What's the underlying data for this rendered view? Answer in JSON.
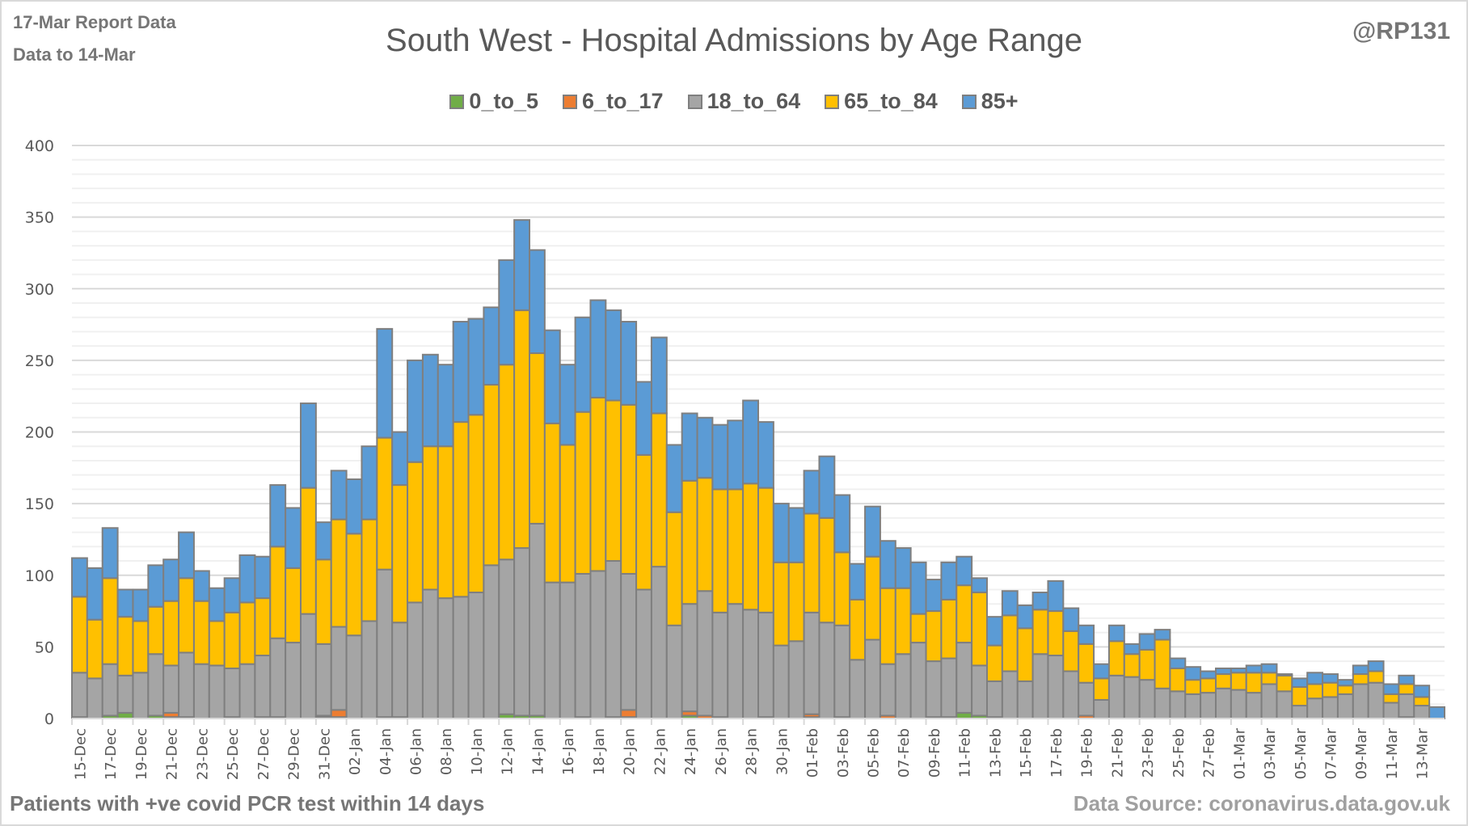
{
  "header": {
    "report_date": "17-Mar Report Data",
    "data_to": "Data to 14-Mar",
    "handle": "@RP131"
  },
  "footer": {
    "note": "Patients with  +ve covid PCR test within 14 days",
    "source": "Data Source: coronavirus.data.gov.uk"
  },
  "chart_data": {
    "type": "bar",
    "stacked": true,
    "title": "South West - Hospital Admissions by Age Range",
    "xlabel": "",
    "ylabel": "",
    "ylim": [
      0,
      400
    ],
    "yticks": [
      0,
      50,
      100,
      150,
      200,
      250,
      300,
      350,
      400
    ],
    "grid": true,
    "legend_position": "top",
    "categories": [
      "15-Dec",
      "16-Dec",
      "17-Dec",
      "18-Dec",
      "19-Dec",
      "20-Dec",
      "21-Dec",
      "22-Dec",
      "23-Dec",
      "24-Dec",
      "25-Dec",
      "26-Dec",
      "27-Dec",
      "28-Dec",
      "29-Dec",
      "30-Dec",
      "31-Dec",
      "01-Jan",
      "02-Jan",
      "03-Jan",
      "04-Jan",
      "05-Jan",
      "06-Jan",
      "07-Jan",
      "08-Jan",
      "09-Jan",
      "10-Jan",
      "11-Jan",
      "12-Jan",
      "13-Jan",
      "14-Jan",
      "15-Jan",
      "16-Jan",
      "17-Jan",
      "18-Jan",
      "19-Jan",
      "20-Jan",
      "21-Jan",
      "22-Jan",
      "23-Jan",
      "24-Jan",
      "25-Jan",
      "26-Jan",
      "27-Jan",
      "28-Jan",
      "29-Jan",
      "30-Jan",
      "31-Jan",
      "01-Feb",
      "02-Feb",
      "03-Feb",
      "04-Feb",
      "05-Feb",
      "06-Feb",
      "07-Feb",
      "08-Feb",
      "09-Feb",
      "10-Feb",
      "11-Feb",
      "12-Feb",
      "13-Feb",
      "14-Feb",
      "15-Feb",
      "16-Feb",
      "17-Feb",
      "18-Feb",
      "19-Feb",
      "20-Feb",
      "21-Feb",
      "22-Feb",
      "23-Feb",
      "24-Feb",
      "25-Feb",
      "26-Feb",
      "27-Feb",
      "28-Feb",
      "01-Mar",
      "02-Mar",
      "03-Mar",
      "04-Mar",
      "05-Mar",
      "06-Mar",
      "07-Mar",
      "08-Mar",
      "09-Mar",
      "10-Mar",
      "11-Mar",
      "12-Mar",
      "13-Mar",
      "14-Mar"
    ],
    "tick_labels": [
      "15-Dec",
      "17-Dec",
      "19-Dec",
      "21-Dec",
      "23-Dec",
      "25-Dec",
      "27-Dec",
      "29-Dec",
      "31-Dec",
      "02-Jan",
      "04-Jan",
      "06-Jan",
      "08-Jan",
      "10-Jan",
      "12-Jan",
      "14-Jan",
      "16-Jan",
      "18-Jan",
      "20-Jan",
      "22-Jan",
      "24-Jan",
      "26-Jan",
      "28-Jan",
      "30-Jan",
      "01-Feb",
      "03-Feb",
      "05-Feb",
      "07-Feb",
      "09-Feb",
      "11-Feb",
      "13-Feb",
      "15-Feb",
      "17-Feb",
      "19-Feb",
      "21-Feb",
      "23-Feb",
      "25-Feb",
      "27-Feb",
      "01-Mar",
      "03-Mar",
      "05-Mar",
      "07-Mar",
      "09-Mar",
      "11-Mar",
      "13-Mar"
    ],
    "series": [
      {
        "name": "0_to_5",
        "color": "#70ad47",
        "values": [
          1,
          0,
          2,
          4,
          0,
          2,
          1,
          1,
          0,
          0,
          1,
          0,
          1,
          1,
          0,
          0,
          1,
          1,
          0,
          0,
          0,
          0,
          0,
          0,
          0,
          0,
          0,
          0,
          3,
          2,
          2,
          0,
          0,
          0,
          0,
          1,
          1,
          0,
          0,
          0,
          2,
          0,
          1,
          0,
          0,
          1,
          0,
          0,
          1,
          0,
          0,
          0,
          0,
          0,
          0,
          0,
          0,
          0,
          4,
          2,
          1,
          0,
          0,
          0,
          0,
          0,
          0,
          0,
          0,
          0,
          0,
          0,
          0,
          0,
          0,
          0,
          0,
          0,
          0,
          0,
          0,
          0,
          0,
          0,
          0,
          0,
          0,
          1,
          0,
          0
        ]
      },
      {
        "name": "6_to_17",
        "color": "#ed7d31",
        "values": [
          0,
          0,
          0,
          0,
          0,
          0,
          3,
          0,
          0,
          0,
          0,
          0,
          0,
          0,
          0,
          0,
          1,
          5,
          0,
          0,
          1,
          1,
          0,
          0,
          0,
          0,
          0,
          0,
          0,
          0,
          0,
          0,
          0,
          1,
          0,
          0,
          5,
          0,
          0,
          0,
          3,
          2,
          0,
          0,
          0,
          0,
          0,
          0,
          2,
          0,
          1,
          0,
          0,
          2,
          0,
          0,
          1,
          1,
          0,
          0,
          0,
          0,
          0,
          0,
          0,
          0,
          2,
          0,
          0,
          0,
          0,
          0,
          0,
          0,
          0,
          0,
          0,
          0,
          0,
          0,
          0,
          0,
          0,
          0,
          0,
          0,
          0,
          0,
          0,
          0
        ]
      },
      {
        "name": "18_to_64",
        "color": "#a5a5a5",
        "values": [
          31,
          28,
          36,
          26,
          32,
          43,
          33,
          45,
          38,
          37,
          34,
          38,
          43,
          55,
          53,
          73,
          50,
          58,
          58,
          68,
          103,
          66,
          81,
          90,
          84,
          85,
          88,
          107,
          108,
          117,
          134,
          95,
          95,
          100,
          103,
          109,
          95,
          90,
          106,
          65,
          75,
          87,
          73,
          80,
          76,
          73,
          51,
          54,
          71,
          67,
          64,
          41,
          55,
          36,
          45,
          53,
          39,
          41,
          49,
          35,
          25,
          33,
          26,
          45,
          44,
          33,
          23,
          13,
          30,
          29,
          27,
          21,
          19,
          17,
          18,
          21,
          20,
          18,
          24,
          19,
          9,
          14,
          15,
          17,
          24,
          25,
          11,
          16,
          9,
          0
        ]
      },
      {
        "name": "65_to_84",
        "color": "#ffc000",
        "values": [
          53,
          41,
          60,
          41,
          36,
          33,
          45,
          52,
          44,
          31,
          39,
          43,
          40,
          64,
          52,
          88,
          59,
          75,
          71,
          71,
          92,
          96,
          98,
          100,
          106,
          122,
          124,
          126,
          136,
          166,
          119,
          111,
          96,
          113,
          121,
          112,
          118,
          94,
          107,
          79,
          86,
          79,
          86,
          80,
          88,
          87,
          58,
          55,
          69,
          73,
          51,
          42,
          58,
          53,
          46,
          20,
          35,
          41,
          40,
          51,
          25,
          39,
          37,
          31,
          31,
          28,
          27,
          15,
          24,
          16,
          21,
          34,
          16,
          10,
          10,
          10,
          12,
          14,
          8,
          11,
          13,
          10,
          10,
          6,
          7,
          8,
          6,
          7,
          6,
          0
        ]
      },
      {
        "name": "85+",
        "color": "#5b9bd5",
        "values": [
          27,
          36,
          35,
          19,
          22,
          29,
          29,
          32,
          21,
          23,
          24,
          33,
          29,
          43,
          42,
          59,
          26,
          34,
          38,
          51,
          76,
          37,
          71,
          64,
          57,
          70,
          67,
          54,
          73,
          63,
          72,
          65,
          56,
          66,
          68,
          63,
          58,
          51,
          53,
          47,
          47,
          42,
          45,
          48,
          58,
          46,
          41,
          38,
          30,
          43,
          40,
          25,
          35,
          33,
          28,
          36,
          22,
          26,
          20,
          10,
          20,
          17,
          16,
          12,
          21,
          16,
          13,
          10,
          11,
          7,
          11,
          7,
          7,
          9,
          5,
          4,
          3,
          5,
          6,
          1,
          6,
          8,
          6,
          4,
          6,
          7,
          7,
          6,
          8,
          8
        ]
      }
    ]
  }
}
